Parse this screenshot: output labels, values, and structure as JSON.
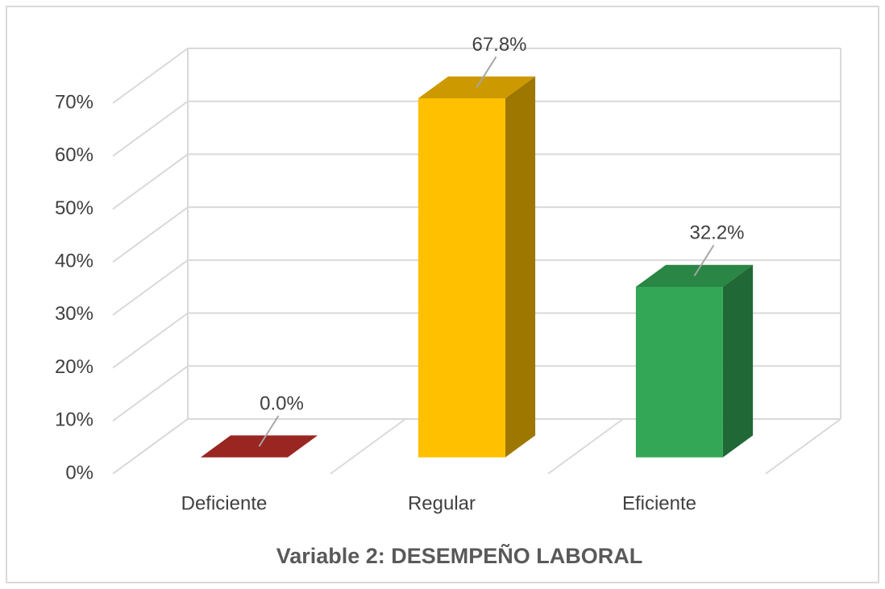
{
  "chart_data": {
    "type": "bar3d",
    "title": "Variable 2: DESEMPEÑO LABORAL",
    "categories": [
      "Deficiente",
      "Regular",
      "Eficiente"
    ],
    "values": [
      0,
      67.8,
      32.2
    ],
    "value_labels": [
      "0.0%",
      "67.8%",
      "32.2%"
    ],
    "colors": [
      "#c0302a",
      "#ffc000",
      "#33a755"
    ],
    "ylim": [
      0,
      70
    ],
    "yticks": [
      {
        "value": 0,
        "label": "0%"
      },
      {
        "value": 10,
        "label": "10%"
      },
      {
        "value": 20,
        "label": "20%"
      },
      {
        "value": 30,
        "label": "30%"
      },
      {
        "value": 40,
        "label": "40%"
      },
      {
        "value": 50,
        "label": "50%"
      },
      {
        "value": 60,
        "label": "60%"
      },
      {
        "value": 70,
        "label": "70%"
      }
    ],
    "grid": true
  }
}
